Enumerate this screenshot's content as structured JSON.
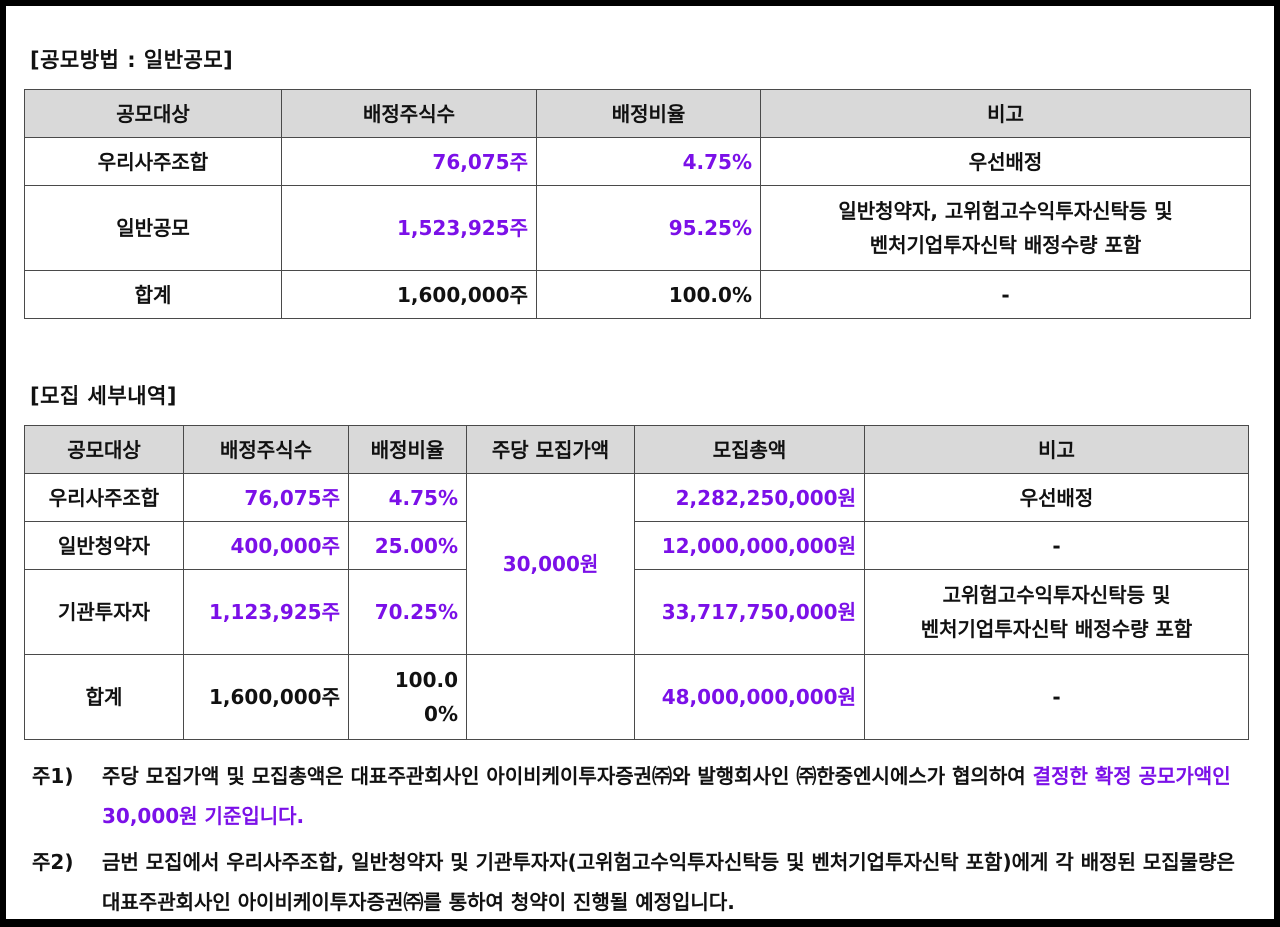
{
  "section1": {
    "title": "[공모방법 : 일반공모]",
    "headers": [
      "공모대상",
      "배정주식수",
      "배정비율",
      "비고"
    ],
    "rows": [
      {
        "target": "우리사주조합",
        "shares": "76,075주",
        "ratio": "4.75%",
        "note1": "우선배정",
        "note2": ""
      },
      {
        "target": "일반공모",
        "shares": "1,523,925주",
        "ratio": "95.25%",
        "note1": "일반청약자, 고위험고수익투자신탁등 및",
        "note2": "벤처기업투자신탁 배정수량 포함"
      },
      {
        "target": "합계",
        "shares": "1,600,000주",
        "ratio": "100.0%",
        "note1": "-",
        "note2": ""
      }
    ]
  },
  "section2": {
    "title": "[모집 세부내역]",
    "headers": [
      "공모대상",
      "배정주식수",
      "배정비율",
      "주당 모집가액",
      "모집총액",
      "비고"
    ],
    "price": "30,000원",
    "rows": [
      {
        "target": "우리사주조합",
        "shares": "76,075주",
        "ratio": "4.75%",
        "total": "2,282,250,000원",
        "note1": "우선배정",
        "note2": ""
      },
      {
        "target": "일반청약자",
        "shares": "400,000주",
        "ratio": "25.00%",
        "total": "12,000,000,000원",
        "note1": "-",
        "note2": ""
      },
      {
        "target": "기관투자자",
        "shares": "1,123,925주",
        "ratio": "70.25%",
        "total": "33,717,750,000원",
        "note1": "고위험고수익투자신탁등 및",
        "note2": "벤처기업투자신탁 배정수량 포함"
      },
      {
        "target": "합계",
        "shares": "1,600,000주",
        "ratio1": "100.0",
        "ratio2": "0%",
        "total": "48,000,000,000원",
        "note1": "-",
        "note2": ""
      }
    ]
  },
  "notes": [
    {
      "label": "주1)",
      "text_plain": "주당 모집가액 및 모집총액은 대표주관회사인 아이비케이투자증권㈜와 발행회사인 ㈜한중엔시에스가 협의하여 ",
      "text_highlight": "결정한 확정 공모가액인 30,000원 기준입니다."
    },
    {
      "label": "주2)",
      "text_plain": "금번 모집에서 우리사주조합, 일반청약자 및 기관투자자(고위험고수익투자신탁등 및 벤처기업투자신탁 포함)에게 각 배정된 모집물량은 대표주관회사인 아이비케이투자증권㈜를 통하여 청약이 진행될 예정입니다."
    }
  ],
  "colors": {
    "highlight": "#7b10e8",
    "header_bg": "#d9d9d9"
  }
}
